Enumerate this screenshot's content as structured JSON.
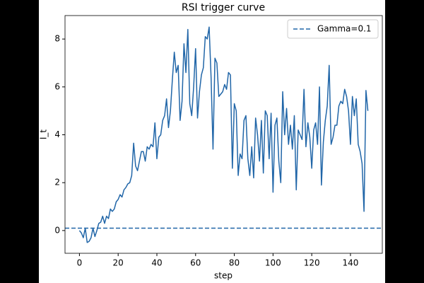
{
  "chart_data": {
    "type": "line",
    "title": "RSI trigger curve",
    "xlabel": "step",
    "ylabel": "I_t",
    "x": [
      0,
      1,
      2,
      3,
      4,
      5,
      6,
      7,
      8,
      9,
      10,
      11,
      12,
      13,
      14,
      15,
      16,
      17,
      18,
      19,
      20,
      21,
      22,
      23,
      24,
      25,
      26,
      27,
      28,
      29,
      30,
      31,
      32,
      33,
      34,
      35,
      36,
      37,
      38,
      39,
      40,
      41,
      42,
      43,
      44,
      45,
      46,
      47,
      48,
      49,
      50,
      51,
      52,
      53,
      54,
      55,
      56,
      57,
      58,
      59,
      60,
      61,
      62,
      63,
      64,
      65,
      66,
      67,
      68,
      69,
      70,
      71,
      72,
      73,
      74,
      75,
      76,
      77,
      78,
      79,
      80,
      81,
      82,
      83,
      84,
      85,
      86,
      87,
      88,
      89,
      90,
      91,
      92,
      93,
      94,
      95,
      96,
      97,
      98,
      99,
      100,
      101,
      102,
      103,
      104,
      105,
      106,
      107,
      108,
      109,
      110,
      111,
      112,
      113,
      114,
      115,
      116,
      117,
      118,
      119,
      120,
      121,
      122,
      123,
      124,
      125,
      126,
      127,
      128,
      129,
      130,
      131,
      132,
      133,
      134,
      135,
      136,
      137,
      138,
      139,
      140,
      141,
      142,
      143,
      144,
      145,
      146,
      147,
      148,
      149
    ],
    "series": [
      {
        "color": "#2166a8",
        "values": [
          0,
          -0.1,
          -0.3,
          0.1,
          -0.5,
          -0.45,
          -0.3,
          0.1,
          -0.25,
          0,
          0.3,
          0.35,
          0.6,
          0.3,
          0.6,
          0.5,
          0.9,
          0.8,
          0.9,
          1.2,
          1.3,
          1.5,
          1.4,
          1.7,
          1.8,
          1.95,
          2,
          2.3,
          3.65,
          2.7,
          2.5,
          2.9,
          3.3,
          3.3,
          2.9,
          3.5,
          3.4,
          3.6,
          3.5,
          4.5,
          3,
          3.9,
          4,
          4.6,
          4.8,
          5.5,
          4.3,
          5,
          6.3,
          7.45,
          6.6,
          6.9,
          4.6,
          5.4,
          7.8,
          6.6,
          8.4,
          5.3,
          4.8,
          6,
          7.6,
          4.7,
          5.8,
          6.5,
          6.8,
          8.1,
          8,
          8.5,
          6.4,
          3.4,
          7.2,
          7,
          5.6,
          5.7,
          5.8,
          6.1,
          5.9,
          6.6,
          6.5,
          2.6,
          5.3,
          5,
          2.3,
          3.2,
          3,
          4.6,
          4.8,
          3,
          2.3,
          3.5,
          2.2,
          4.7,
          4,
          2.9,
          4.6,
          2.4,
          5,
          4.8,
          3,
          4.9,
          1.6,
          4.4,
          4.7,
          2.9,
          2,
          5.8,
          4,
          5.1,
          3.6,
          4.4,
          3.4,
          4.8,
          1.7,
          4.2,
          4,
          3.8,
          5.9,
          3.5,
          4.5,
          3.9,
          2.6,
          4.2,
          4.5,
          3.6,
          6,
          1.9,
          3.7,
          4.6,
          5.2,
          6.9,
          3.6,
          3.9,
          4.4,
          4.4,
          5.2,
          5.4,
          5.3,
          5.9,
          5.6,
          5,
          3.6,
          5.6,
          4.8,
          5.5,
          3.6,
          3.3,
          2.8,
          0.8,
          5.85,
          5
        ]
      }
    ],
    "hline": {
      "name": "Gamma=0.1",
      "value": 0.1,
      "color": "#2166a8"
    },
    "legend": "upper right",
    "xlim": [
      -7.45,
      156.45
    ],
    "ylim": [
      -0.95,
      8.98
    ],
    "xticks": [
      0,
      20,
      40,
      60,
      80,
      100,
      120,
      140
    ],
    "yticks": [
      0,
      2,
      4,
      6,
      8
    ]
  }
}
